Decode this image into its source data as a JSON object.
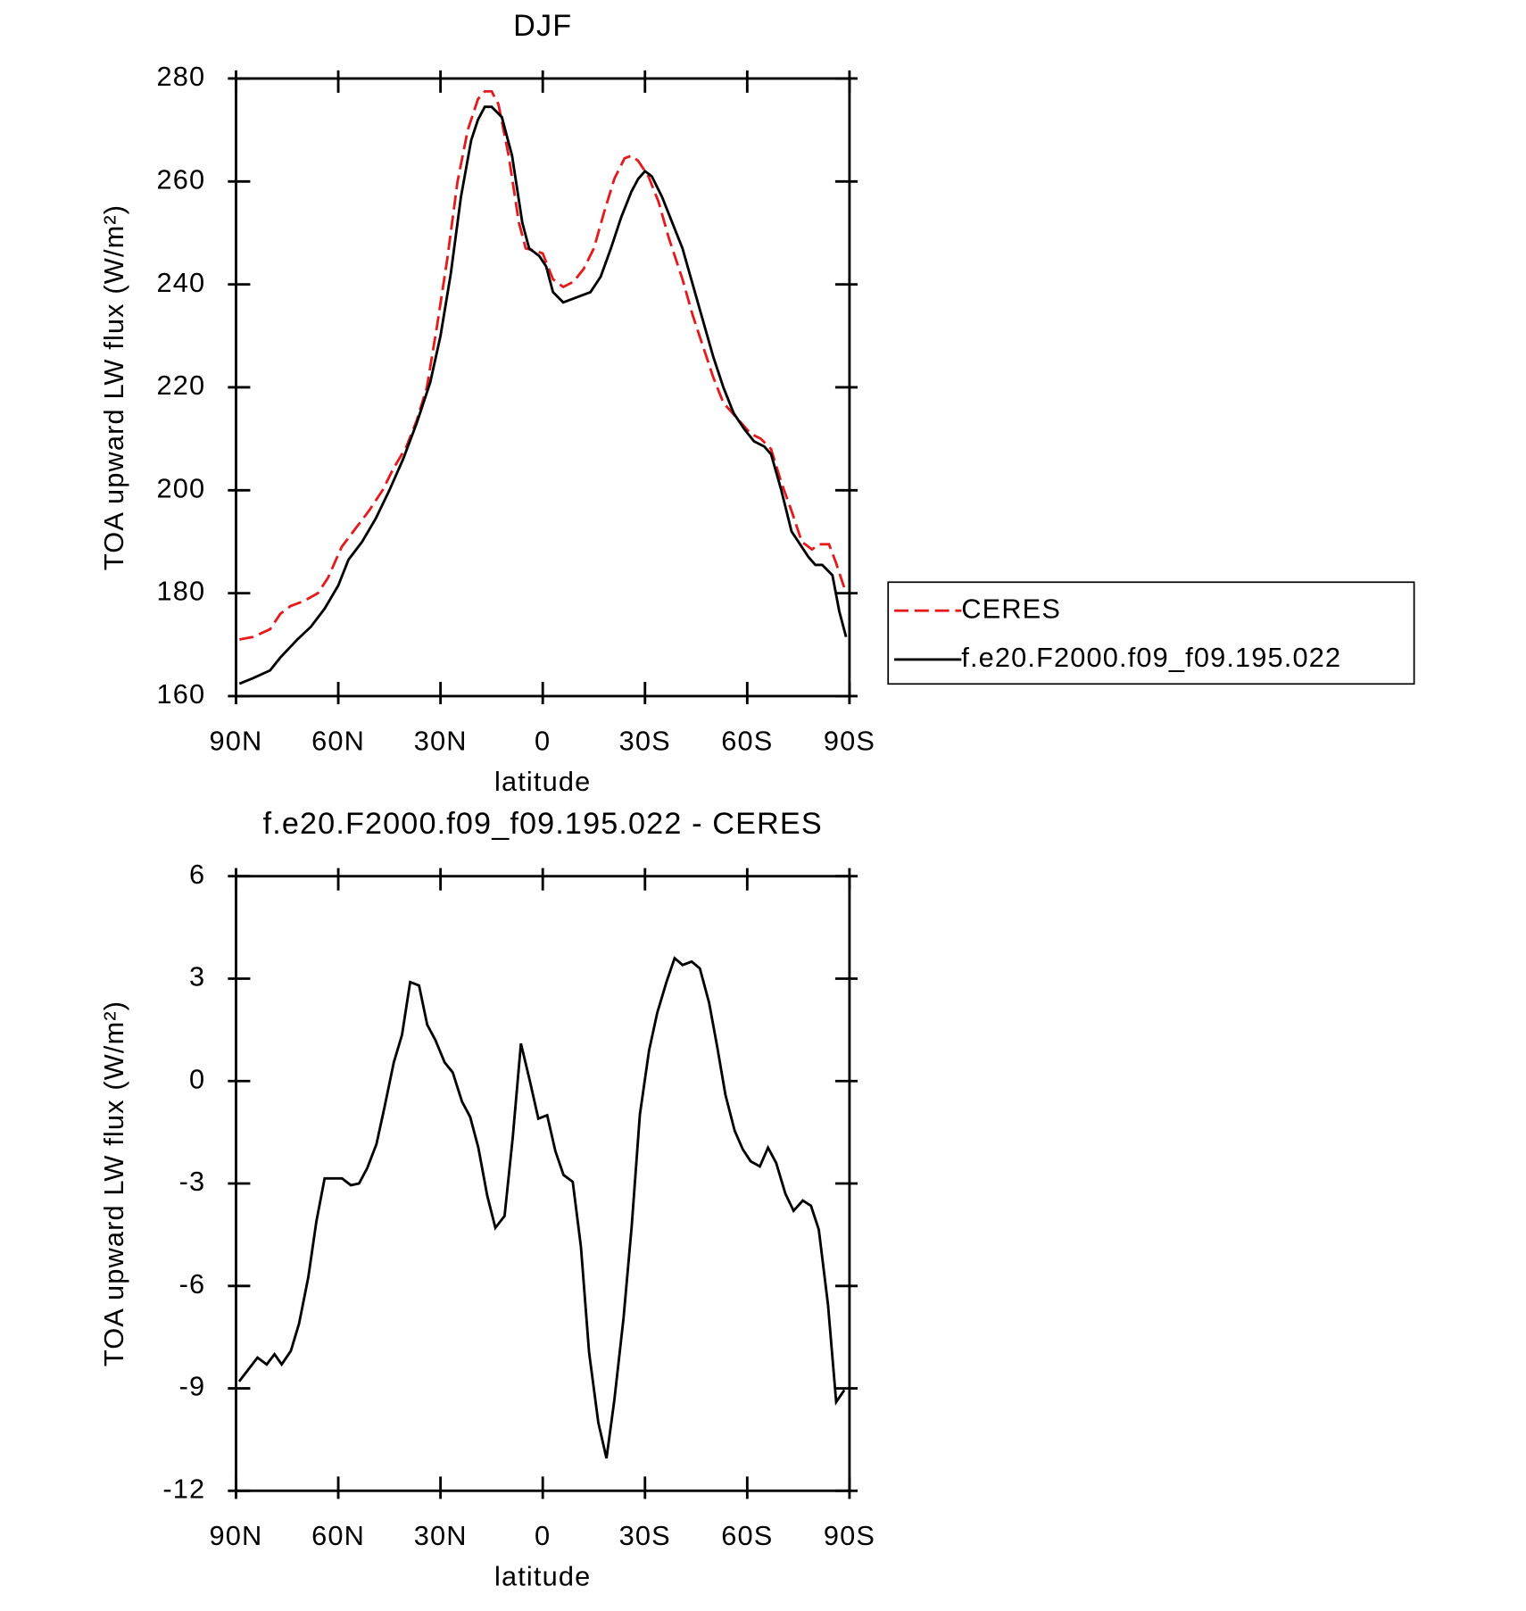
{
  "chart_data": [
    {
      "type": "line",
      "title": "DJF",
      "xlabel": "latitude",
      "ylabel": "TOA upward LW flux (W/m²)",
      "xlim": [
        90,
        -90
      ],
      "xticks": [
        {
          "value": 90,
          "label": "90N"
        },
        {
          "value": 60,
          "label": "60N"
        },
        {
          "value": 30,
          "label": "30N"
        },
        0,
        {
          "value": -30,
          "label": "30S"
        },
        {
          "value": -60,
          "label": "60S"
        },
        {
          "value": -90,
          "label": "90S"
        }
      ],
      "ylim": [
        160,
        280
      ],
      "yticks": [
        160,
        180,
        200,
        220,
        240,
        260,
        280
      ],
      "legend": "right",
      "series": [
        {
          "name": "CERES",
          "color": "#e41a1c",
          "dashed": true,
          "x": [
            89,
            85,
            80,
            77,
            74,
            70,
            66,
            63,
            59,
            55,
            51,
            47,
            44,
            40,
            37,
            34,
            31,
            28,
            25,
            22,
            19,
            17,
            15,
            13,
            10,
            7,
            5,
            2,
            0,
            -3,
            -6,
            -9,
            -12,
            -15,
            -18,
            -21,
            -24,
            -26,
            -28,
            -31,
            -34,
            -37,
            -41,
            -44,
            -47,
            -50,
            -53,
            -57,
            -61,
            -64,
            -67,
            -70,
            -73,
            -76,
            -79,
            -81,
            -84,
            -86,
            -89
          ],
          "values": [
            171,
            171.5,
            173,
            176,
            177.5,
            178.5,
            180,
            183,
            189,
            192.5,
            196,
            200,
            204,
            208.5,
            213.5,
            220,
            232,
            245,
            260,
            270,
            276,
            277.5,
            277.5,
            275,
            265,
            252,
            247,
            246.5,
            246,
            241,
            239.5,
            240.5,
            243,
            247,
            254,
            260.5,
            264.5,
            265,
            264,
            261,
            256,
            249,
            241,
            234,
            228,
            222,
            217,
            214,
            211,
            210,
            208,
            201.5,
            196,
            190,
            188.5,
            189.5,
            189.5,
            186,
            180
          ]
        },
        {
          "name": "f.e20.F2000.f09_f09.195.022",
          "color": "#000000",
          "dashed": false,
          "x": [
            89,
            85,
            80,
            77,
            72,
            68,
            64,
            60,
            57,
            53,
            49,
            45,
            41,
            37,
            33,
            30,
            27,
            24,
            21,
            19,
            17,
            15,
            12,
            9,
            6,
            4,
            1,
            -1,
            -3,
            -6,
            -10,
            -14,
            -17,
            -20,
            -23,
            -26,
            -28,
            -30,
            -32,
            -35,
            -38,
            -41,
            -44,
            -47,
            -50,
            -53,
            -56,
            -59,
            -62,
            -65,
            -67,
            -70,
            -73,
            -75,
            -78,
            -80,
            -82,
            -85,
            -87,
            -89
          ],
          "values": [
            162.4,
            163.5,
            165,
            167.5,
            171,
            173.5,
            177,
            181.5,
            186.5,
            190,
            194.5,
            200,
            206,
            213,
            221,
            230,
            242,
            257,
            268,
            272,
            274.5,
            274.5,
            272.5,
            265,
            252,
            247,
            245.5,
            243.5,
            238.5,
            236.5,
            237.5,
            238.5,
            241.5,
            247,
            253,
            258,
            260.5,
            262,
            261,
            257,
            252,
            247,
            240,
            233,
            226,
            220,
            215,
            212,
            209.5,
            208.5,
            207,
            200,
            192,
            190,
            187,
            185.5,
            185.5,
            183.5,
            176.5,
            171.5
          ]
        }
      ]
    },
    {
      "type": "line",
      "title": "f.e20.F2000.f09_f09.195.022 - CERES",
      "xlabel": "latitude",
      "ylabel": "TOA upward LW flux (W/m²)",
      "xlim": [
        90,
        -90
      ],
      "xticks": [
        {
          "value": 90,
          "label": "90N"
        },
        {
          "value": 60,
          "label": "60N"
        },
        {
          "value": 30,
          "label": "30N"
        },
        0,
        {
          "value": -30,
          "label": "30S"
        },
        {
          "value": -60,
          "label": "60S"
        },
        {
          "value": -90,
          "label": "90S"
        }
      ],
      "ylim": [
        -12,
        6
      ],
      "yticks": [
        -12,
        -9,
        -6,
        -3,
        0,
        3,
        6
      ],
      "series": [
        {
          "color": "#000000",
          "dashed": false,
          "x": [
            89.1,
            83.7,
            81,
            78.7,
            76.6,
            73.9,
            71.5,
            68.8,
            66.4,
            64,
            61.3,
            58.9,
            56.3,
            53.9,
            51.5,
            48.8,
            46.4,
            43.7,
            41.3,
            38.9,
            36.3,
            33.9,
            31.5,
            28.8,
            26.4,
            23.7,
            21.3,
            18.9,
            16.3,
            13.9,
            11.2,
            8.8,
            6.4,
            3.7,
            1.3,
            -1.3,
            -3.7,
            -6.1,
            -8.8,
            -11.2,
            -13.6,
            -16.3,
            -18.7,
            -21,
            -23.7,
            -26.1,
            -28.5,
            -31.2,
            -33.6,
            -36.3,
            -38.7,
            -41,
            -43.7,
            -46.1,
            -48.8,
            -51.2,
            -53.6,
            -56.3,
            -58.7,
            -61,
            -63.7,
            -66.1,
            -68.5,
            -71.2,
            -73.6,
            -76.3,
            -78.7,
            -81,
            -83.7,
            -86.1,
            -88.5
          ],
          "values": [
            -8.8,
            -8.1,
            -8.3,
            -8.0,
            -8.3,
            -7.9,
            -7.1,
            -5.75,
            -4.1,
            -2.85,
            -2.85,
            -2.85,
            -3.05,
            -3.0,
            -2.55,
            -1.85,
            -0.75,
            0.55,
            1.35,
            2.9,
            2.8,
            1.65,
            1.2,
            0.55,
            0.25,
            -0.6,
            -1.05,
            -1.95,
            -3.35,
            -4.3,
            -3.95,
            -1.65,
            1.1,
            -0.03,
            -1.1,
            -1.0,
            -2.05,
            -2.75,
            -2.95,
            -4.85,
            -7.95,
            -10.0,
            -11.05,
            -9.35,
            -6.95,
            -4.25,
            -0.98,
            0.9,
            2.0,
            2.9,
            3.6,
            3.4,
            3.5,
            3.3,
            2.3,
            1.0,
            -0.4,
            -1.45,
            -2.0,
            -2.35,
            -2.5,
            -1.95,
            -2.4,
            -3.3,
            -3.8,
            -3.5,
            -3.65,
            -4.35,
            -6.55,
            -9.4,
            -9.05
          ]
        }
      ]
    }
  ]
}
